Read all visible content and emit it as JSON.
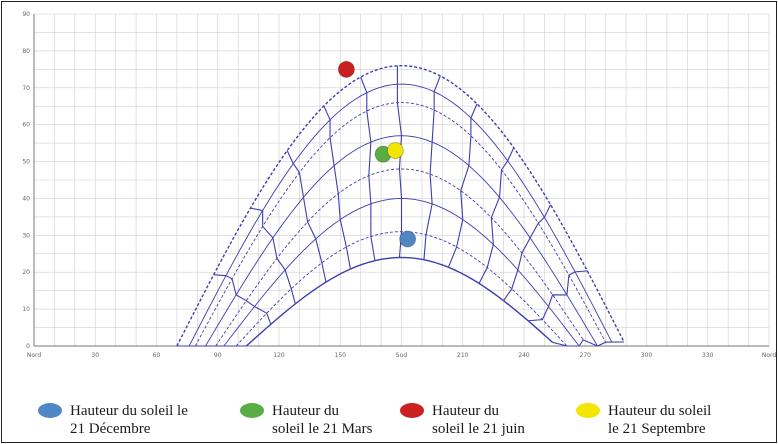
{
  "chart_data": {
    "type": "line",
    "title": "",
    "xlabel": "",
    "ylabel": "",
    "x_ticks": [
      "Nord",
      "30",
      "60",
      "90",
      "120",
      "150",
      "Sud",
      "210",
      "240",
      "270",
      "300",
      "330",
      "Nord"
    ],
    "y_ticks": [
      "90",
      "80",
      "70",
      "60",
      "50",
      "40",
      "30",
      "20",
      "10",
      "0"
    ],
    "xlim": [
      0,
      360
    ],
    "ylim": [
      0,
      90
    ],
    "grid": true,
    "legend_position": "bottom",
    "points": [
      {
        "name": "Hauteur du soleil le 21 Décembre",
        "x": 183,
        "y": 29,
        "color": "#4f86c6"
      },
      {
        "name": "Hauteur du soleil le 21 Mars",
        "x": 171,
        "y": 52,
        "color": "#5aad45"
      },
      {
        "name": "Hauteur du soleil le 21 juin",
        "x": 153,
        "y": 75,
        "color": "#cc1f1f"
      },
      {
        "name": "Hauteur du soleil le 21 Septembre",
        "x": 177,
        "y": 53,
        "color": "#f2e600"
      }
    ]
  },
  "legend": {
    "items": [
      {
        "label": "Hauteur du soleil le\n21 Décembre",
        "color": "#4f86c6"
      },
      {
        "label": "Hauteur du\nsoleil le 21 Mars",
        "color": "#5aad45"
      },
      {
        "label": "Hauteur du\nsoleil le 21 juin",
        "color": "#cc1f1f"
      },
      {
        "label": "Hauteur du soleil\nle 21 Septembre",
        "color": "#f2e600"
      }
    ]
  }
}
